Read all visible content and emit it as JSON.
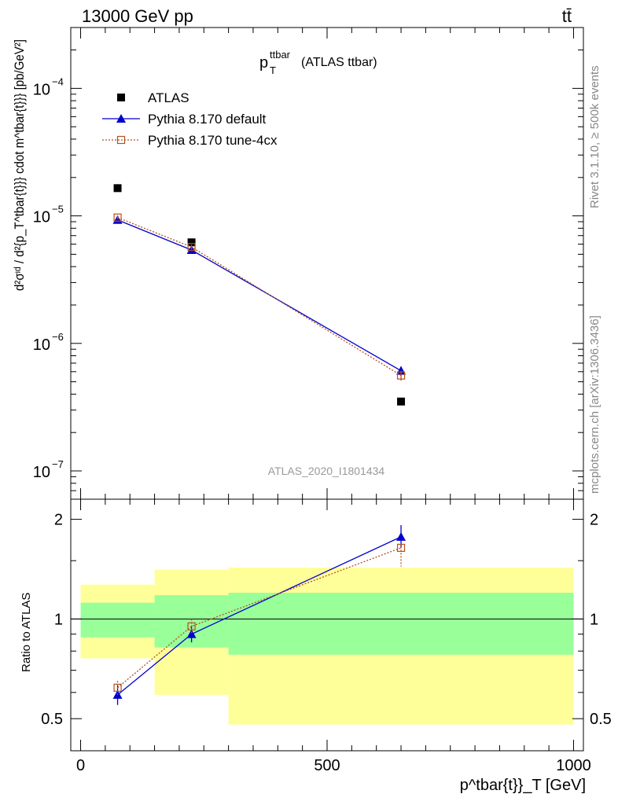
{
  "header": {
    "left": "13000 GeV pp",
    "right": "tt̄"
  },
  "plot_title": {
    "main": "p",
    "sup": "ttbar",
    "sub": "T",
    "suffix": "(ATLAS ttbar)"
  },
  "watermark": "ATLAS_2020_I1801434",
  "side_labels": {
    "rivet": "Rivet 3.1.10, ≥ 500k events",
    "mcplots": "mcplots.cern.ch [arXiv:1306.3436]"
  },
  "y_axis_main": {
    "label": "d²σᶦᵈ / d²{p_T^tbar{t}}} cdot m^tbar{t}}} [pb/GeV²]",
    "ticks": [
      {
        "base": "10",
        "exp": "−4",
        "value": 0.0001
      },
      {
        "base": "10",
        "exp": "−5",
        "value": 1e-05
      },
      {
        "base": "10",
        "exp": "−6",
        "value": 1e-06
      },
      {
        "base": "10",
        "exp": "−7",
        "value": 1e-07
      }
    ]
  },
  "y_axis_ratio": {
    "label": "Ratio to ATLAS",
    "ticks": [
      "0.5",
      "1",
      "2"
    ]
  },
  "x_axis": {
    "label": "p^tbar{t}}_T [GeV]",
    "ticks": [
      "0",
      "500",
      "1000"
    ]
  },
  "legend": [
    {
      "name": "ATLAS",
      "color": "#000000",
      "marker": "square-filled"
    },
    {
      "name": "Pythia 8.170 default",
      "color": "#0000cc",
      "marker": "triangle"
    },
    {
      "name": "Pythia 8.170 tune-4cx",
      "color": "#b5501c",
      "marker": "square-open"
    }
  ],
  "chart_data": {
    "type": "scatter",
    "title": "p_T^ttbar (ATLAS ttbar)",
    "xlabel": "p_T^tbar{t} [GeV]",
    "ylabel": "d2 sigma / d2 p_T cdot m [pb/GeV2]",
    "yscale": "log",
    "xlim": [
      -20,
      1020
    ],
    "ylim": [
      6e-08,
      0.0003
    ],
    "x_bins": [
      [
        0,
        150
      ],
      [
        150,
        300
      ],
      [
        300,
        1000
      ]
    ],
    "x": [
      75,
      225,
      650
    ],
    "series": [
      {
        "name": "ATLAS",
        "values": [
          1.65e-05,
          6.2e-06,
          3.5e-07
        ],
        "color": "#000000"
      },
      {
        "name": "Pythia 8.170 default",
        "values": [
          9.3e-06,
          5.4e-06,
          6.1e-07
        ],
        "errors": [
          3e-07,
          2.5e-07,
          5e-08
        ],
        "color": "#0000cc"
      },
      {
        "name": "Pythia 8.170 tune-4cx",
        "values": [
          9.7e-06,
          5.7e-06,
          5.6e-07
        ],
        "errors": [
          3e-07,
          2.5e-07,
          5e-08
        ],
        "color": "#b5501c"
      }
    ],
    "ratio": {
      "ylabel": "Ratio to ATLAS",
      "ylim": [
        0.4,
        2.3
      ],
      "yscale": "log",
      "series": [
        {
          "name": "Pythia 8.170 default",
          "values": [
            0.59,
            0.9,
            1.77
          ],
          "err_lo": [
            0.04,
            0.05,
            0.13
          ],
          "err_hi": [
            0.04,
            0.05,
            0.15
          ]
        },
        {
          "name": "Pythia 8.170 tune-4cx",
          "values": [
            0.62,
            0.95,
            1.64
          ],
          "err_lo": [
            0.03,
            0.05,
            0.2
          ],
          "err_hi": [
            0.03,
            0.05,
            0.05
          ]
        }
      ],
      "bands": [
        {
          "x": [
            0,
            150
          ],
          "inner": [
            0.88,
            1.12
          ],
          "outer": [
            0.76,
            1.27
          ]
        },
        {
          "x": [
            150,
            300
          ],
          "inner": [
            0.82,
            1.18
          ],
          "outer": [
            0.59,
            1.41
          ]
        },
        {
          "x": [
            300,
            1000
          ],
          "inner": [
            0.78,
            1.2
          ],
          "outer": [
            0.48,
            1.43
          ]
        }
      ]
    }
  }
}
